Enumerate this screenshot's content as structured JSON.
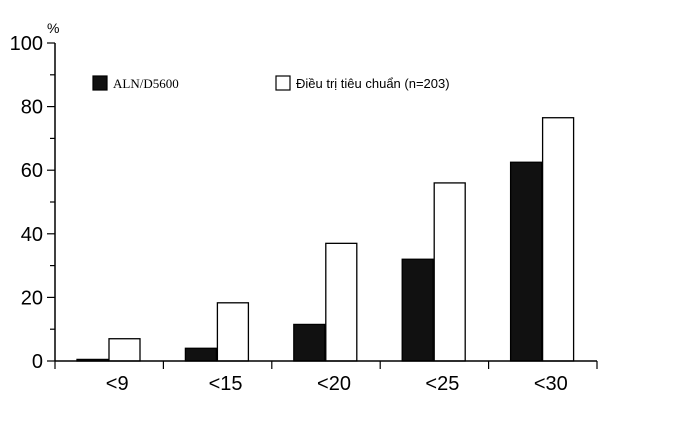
{
  "chart_data": {
    "type": "bar",
    "categories": [
      "<9",
      "<15",
      "<20",
      "<25",
      "<30"
    ],
    "series": [
      {
        "name": "ALN/D5600",
        "values": [
          0.5,
          4,
          11.5,
          32,
          62.5
        ],
        "color": "#111111"
      },
      {
        "name": "Điều trị tiêu chuẩn (n=203)",
        "values": [
          7,
          18.3,
          37,
          56,
          76.5
        ],
        "color": "#ffffff"
      }
    ],
    "title": "",
    "xlabel": "",
    "ylabel": "%",
    "ylim": [
      0,
      100
    ],
    "yticks": [
      0,
      20,
      40,
      60,
      80,
      100
    ],
    "grid": false,
    "legend": "top"
  }
}
